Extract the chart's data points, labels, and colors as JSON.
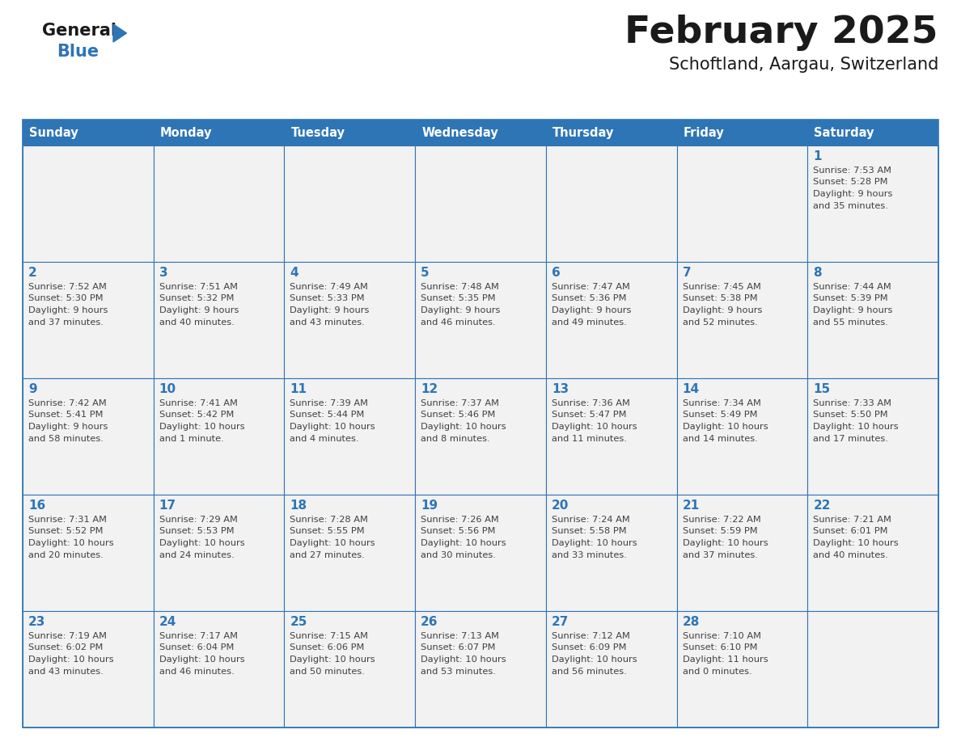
{
  "title": "February 2025",
  "subtitle": "Schoftland, Aargau, Switzerland",
  "header_bg": "#2E75B6",
  "header_text_color": "#FFFFFF",
  "cell_bg": "#F2F2F2",
  "cell_bg_alt": "#FFFFFF",
  "cell_border_color": "#2E75B6",
  "day_number_color": "#2E75B6",
  "day_info_color": "#404040",
  "title_color": "#1a1a1a",
  "subtitle_color": "#1a1a1a",
  "logo_general_color": "#1a1a1a",
  "logo_blue_color": "#2E75B6",
  "weekdays": [
    "Sunday",
    "Monday",
    "Tuesday",
    "Wednesday",
    "Thursday",
    "Friday",
    "Saturday"
  ],
  "weeks": [
    [
      {
        "day": null,
        "info": ""
      },
      {
        "day": null,
        "info": ""
      },
      {
        "day": null,
        "info": ""
      },
      {
        "day": null,
        "info": ""
      },
      {
        "day": null,
        "info": ""
      },
      {
        "day": null,
        "info": ""
      },
      {
        "day": 1,
        "info": "Sunrise: 7:53 AM\nSunset: 5:28 PM\nDaylight: 9 hours\nand 35 minutes."
      }
    ],
    [
      {
        "day": 2,
        "info": "Sunrise: 7:52 AM\nSunset: 5:30 PM\nDaylight: 9 hours\nand 37 minutes."
      },
      {
        "day": 3,
        "info": "Sunrise: 7:51 AM\nSunset: 5:32 PM\nDaylight: 9 hours\nand 40 minutes."
      },
      {
        "day": 4,
        "info": "Sunrise: 7:49 AM\nSunset: 5:33 PM\nDaylight: 9 hours\nand 43 minutes."
      },
      {
        "day": 5,
        "info": "Sunrise: 7:48 AM\nSunset: 5:35 PM\nDaylight: 9 hours\nand 46 minutes."
      },
      {
        "day": 6,
        "info": "Sunrise: 7:47 AM\nSunset: 5:36 PM\nDaylight: 9 hours\nand 49 minutes."
      },
      {
        "day": 7,
        "info": "Sunrise: 7:45 AM\nSunset: 5:38 PM\nDaylight: 9 hours\nand 52 minutes."
      },
      {
        "day": 8,
        "info": "Sunrise: 7:44 AM\nSunset: 5:39 PM\nDaylight: 9 hours\nand 55 minutes."
      }
    ],
    [
      {
        "day": 9,
        "info": "Sunrise: 7:42 AM\nSunset: 5:41 PM\nDaylight: 9 hours\nand 58 minutes."
      },
      {
        "day": 10,
        "info": "Sunrise: 7:41 AM\nSunset: 5:42 PM\nDaylight: 10 hours\nand 1 minute."
      },
      {
        "day": 11,
        "info": "Sunrise: 7:39 AM\nSunset: 5:44 PM\nDaylight: 10 hours\nand 4 minutes."
      },
      {
        "day": 12,
        "info": "Sunrise: 7:37 AM\nSunset: 5:46 PM\nDaylight: 10 hours\nand 8 minutes."
      },
      {
        "day": 13,
        "info": "Sunrise: 7:36 AM\nSunset: 5:47 PM\nDaylight: 10 hours\nand 11 minutes."
      },
      {
        "day": 14,
        "info": "Sunrise: 7:34 AM\nSunset: 5:49 PM\nDaylight: 10 hours\nand 14 minutes."
      },
      {
        "day": 15,
        "info": "Sunrise: 7:33 AM\nSunset: 5:50 PM\nDaylight: 10 hours\nand 17 minutes."
      }
    ],
    [
      {
        "day": 16,
        "info": "Sunrise: 7:31 AM\nSunset: 5:52 PM\nDaylight: 10 hours\nand 20 minutes."
      },
      {
        "day": 17,
        "info": "Sunrise: 7:29 AM\nSunset: 5:53 PM\nDaylight: 10 hours\nand 24 minutes."
      },
      {
        "day": 18,
        "info": "Sunrise: 7:28 AM\nSunset: 5:55 PM\nDaylight: 10 hours\nand 27 minutes."
      },
      {
        "day": 19,
        "info": "Sunrise: 7:26 AM\nSunset: 5:56 PM\nDaylight: 10 hours\nand 30 minutes."
      },
      {
        "day": 20,
        "info": "Sunrise: 7:24 AM\nSunset: 5:58 PM\nDaylight: 10 hours\nand 33 minutes."
      },
      {
        "day": 21,
        "info": "Sunrise: 7:22 AM\nSunset: 5:59 PM\nDaylight: 10 hours\nand 37 minutes."
      },
      {
        "day": 22,
        "info": "Sunrise: 7:21 AM\nSunset: 6:01 PM\nDaylight: 10 hours\nand 40 minutes."
      }
    ],
    [
      {
        "day": 23,
        "info": "Sunrise: 7:19 AM\nSunset: 6:02 PM\nDaylight: 10 hours\nand 43 minutes."
      },
      {
        "day": 24,
        "info": "Sunrise: 7:17 AM\nSunset: 6:04 PM\nDaylight: 10 hours\nand 46 minutes."
      },
      {
        "day": 25,
        "info": "Sunrise: 7:15 AM\nSunset: 6:06 PM\nDaylight: 10 hours\nand 50 minutes."
      },
      {
        "day": 26,
        "info": "Sunrise: 7:13 AM\nSunset: 6:07 PM\nDaylight: 10 hours\nand 53 minutes."
      },
      {
        "day": 27,
        "info": "Sunrise: 7:12 AM\nSunset: 6:09 PM\nDaylight: 10 hours\nand 56 minutes."
      },
      {
        "day": 28,
        "info": "Sunrise: 7:10 AM\nSunset: 6:10 PM\nDaylight: 11 hours\nand 0 minutes."
      },
      {
        "day": null,
        "info": ""
      }
    ]
  ],
  "fig_width": 11.88,
  "fig_height": 9.18,
  "dpi": 100
}
